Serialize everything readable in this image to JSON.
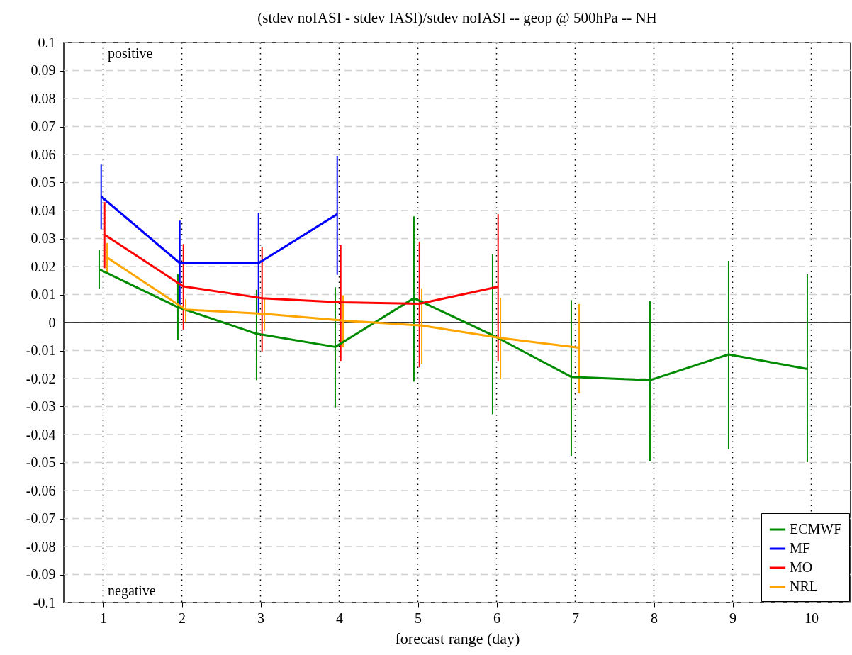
{
  "chart_data": {
    "type": "line",
    "title": "(stdev noIASI - stdev IASI)/stdev noIASI -- geop @ 500hPa -- NH",
    "xlabel": "forecast range (day)",
    "annotations": [
      "positive",
      "negative"
    ],
    "xlim": [
      0.5,
      10.5
    ],
    "xticks": [
      1,
      2,
      3,
      4,
      5,
      6,
      7,
      8,
      9,
      10
    ],
    "ylim": [
      -0.1,
      0.1
    ],
    "yticks": [
      -0.1,
      -0.09,
      -0.08,
      -0.07,
      -0.06,
      -0.05,
      -0.04,
      -0.03,
      -0.02,
      -0.01,
      0,
      0.01,
      0.02,
      0.03,
      0.04,
      0.05,
      0.06,
      0.07,
      0.08,
      0.09,
      0.1
    ],
    "grid": true,
    "legend": "bottom right",
    "marker": "none",
    "line_style": "solid",
    "ref_lines": [
      {
        "axis": "y",
        "value": 0,
        "color": "#000000"
      }
    ],
    "series": [
      {
        "name": "ECMWF",
        "color": "#008c00",
        "x": [
          0.95,
          1.95,
          2.95,
          3.95,
          4.95,
          5.95,
          6.95,
          7.95,
          8.95,
          9.95
        ],
        "values": [
          0.019,
          0.0055,
          -0.004,
          -0.0087,
          0.0087,
          -0.0045,
          -0.0194,
          -0.0206,
          -0.0114,
          -0.0166
        ],
        "errors": [
          [
            0.012,
            0.026
          ],
          [
            -0.0063,
            0.0173
          ],
          [
            -0.0206,
            0.0117
          ],
          [
            -0.0303,
            0.0126
          ],
          [
            -0.0211,
            0.0379
          ],
          [
            -0.0328,
            0.0244
          ],
          [
            -0.0476,
            0.008
          ],
          [
            -0.0494,
            0.0076
          ],
          [
            -0.0453,
            0.022
          ],
          [
            -0.0499,
            0.0172
          ]
        ]
      },
      {
        "name": "MF",
        "color": "#0000ff",
        "x": [
          0.975,
          1.975,
          2.975,
          3.975
        ],
        "values": [
          0.045,
          0.0212,
          0.0212,
          0.0387
        ],
        "errors": [
          [
            0.0333,
            0.0564
          ],
          [
            0.0055,
            0.0364
          ],
          [
            0.0034,
            0.0391
          ],
          [
            0.017,
            0.0595
          ]
        ]
      },
      {
        "name": "MO",
        "color": "#ff0000",
        "x": [
          1.02,
          2.02,
          3.02,
          4.02,
          5.02,
          6.02
        ],
        "values": [
          0.0313,
          0.0129,
          0.0087,
          0.0072,
          0.0067,
          0.0128
        ],
        "errors": [
          [
            0.0194,
            0.043
          ],
          [
            -0.0025,
            0.028
          ],
          [
            -0.0103,
            0.0271
          ],
          [
            -0.0137,
            0.0276
          ],
          [
            -0.016,
            0.0289
          ],
          [
            -0.0137,
            0.0387
          ]
        ]
      },
      {
        "name": "NRL",
        "color": "#ffa500",
        "x": [
          1.05,
          2.05,
          3.05,
          4.05,
          5.05,
          6.05,
          7.05
        ],
        "values": [
          0.0232,
          0.0046,
          0.0031,
          0.0007,
          -0.0011,
          -0.0055,
          -0.009
        ],
        "errors": [
          [
            0.0173,
            0.0284
          ],
          [
            0.0002,
            0.0084
          ],
          [
            -0.003,
            0.0084
          ],
          [
            -0.0088,
            0.0097
          ],
          [
            -0.0147,
            0.0122
          ],
          [
            -0.0202,
            0.0088
          ],
          [
            -0.0253,
            0.0066
          ]
        ]
      }
    ]
  }
}
